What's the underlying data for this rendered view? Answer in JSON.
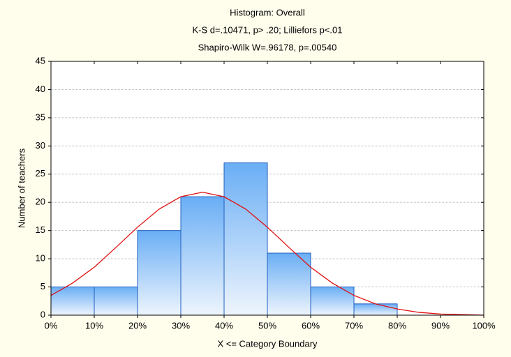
{
  "chart_data": {
    "type": "histogram",
    "title": "Histogram: Overall",
    "subtitles": [
      "K-S d=.10471, p> .20; Lilliefors p<.01",
      "Shapiro-Wilk W=.96178, p=.00540"
    ],
    "x_label": "X <= Category Boundary",
    "y_label": "Number of teachers",
    "bins": [
      0,
      10,
      20,
      30,
      40,
      50,
      60,
      70,
      80,
      90,
      100
    ],
    "counts": [
      5,
      5,
      15,
      21,
      27,
      11,
      5,
      2,
      0,
      0
    ],
    "color": "#6aaef5",
    "edge_color": "#1f5fbf",
    "fit_curve": {
      "color": "#e01010",
      "x": [
        0,
        5,
        10,
        15,
        20,
        25,
        30,
        35,
        40,
        45,
        50,
        55,
        60,
        65,
        70,
        75,
        80,
        85,
        90,
        95,
        100
      ],
      "values": [
        3.5,
        5.7,
        8.5,
        12.0,
        15.6,
        18.8,
        21.0,
        21.8,
        21.0,
        18.8,
        15.6,
        12.0,
        8.5,
        5.7,
        3.5,
        2.0,
        1.1,
        0.5,
        0.2,
        0.1,
        0.0
      ]
    },
    "xlim": [
      0,
      100
    ],
    "xticks": [
      {
        "value": 0,
        "label": "0%"
      },
      {
        "value": 10,
        "label": "10%"
      },
      {
        "value": 20,
        "label": "20%"
      },
      {
        "value": 30,
        "label": "30%"
      },
      {
        "value": 40,
        "label": "40%"
      },
      {
        "value": 50,
        "label": "50%"
      },
      {
        "value": 60,
        "label": "60%"
      },
      {
        "value": 70,
        "label": "70%"
      },
      {
        "value": 80,
        "label": "80%"
      },
      {
        "value": 90,
        "label": "90%"
      },
      {
        "value": 100,
        "label": "100%"
      }
    ],
    "ylim": [
      0,
      45
    ],
    "yticks": [
      0,
      5,
      10,
      15,
      20,
      25,
      30,
      35,
      40,
      45
    ],
    "grid": true
  }
}
